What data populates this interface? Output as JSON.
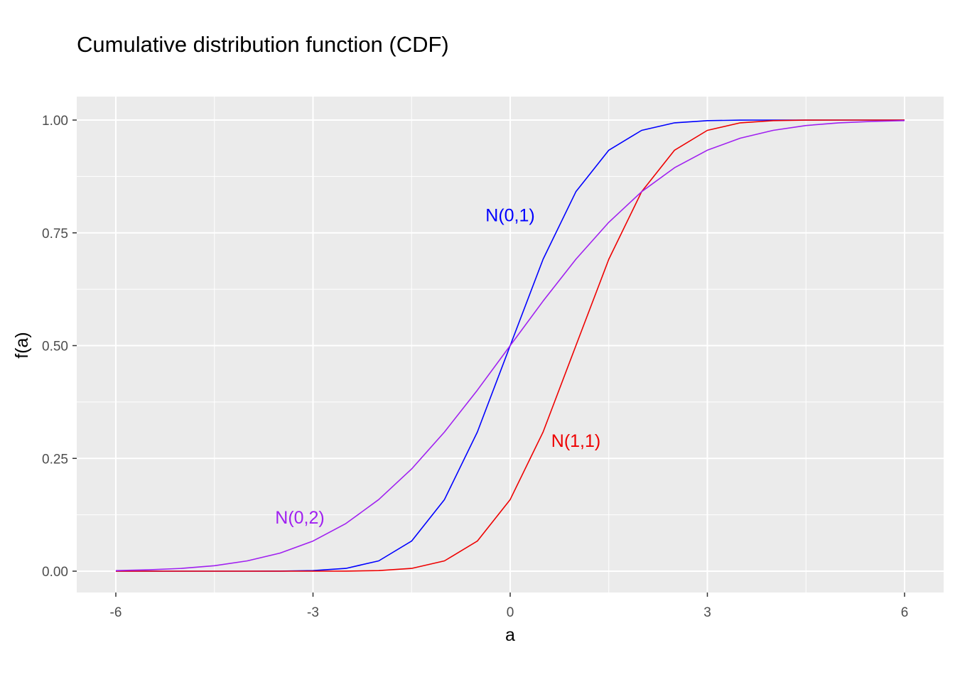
{
  "chart_data": {
    "type": "line",
    "title": "Cumulative distribution function (CDF)",
    "xlabel": "a",
    "ylabel": "f(a)",
    "xlim": [
      -6,
      6
    ],
    "ylim": [
      0,
      1
    ],
    "x_ticks": [
      -6,
      -3,
      0,
      3,
      6
    ],
    "x_tick_labels": [
      "-6",
      "-3",
      "0",
      "3",
      "6"
    ],
    "y_ticks": [
      0,
      0.25,
      0.5,
      0.75,
      1
    ],
    "y_tick_labels": [
      "0.00",
      "0.25",
      "0.50",
      "0.75",
      "1.00"
    ],
    "grid": true,
    "background": "#ebebeb",
    "x": [
      -6.0,
      -5.5,
      -5.0,
      -4.5,
      -4.0,
      -3.5,
      -3.0,
      -2.5,
      -2.0,
      -1.5,
      -1.0,
      -0.5,
      0.0,
      0.5,
      1.0,
      1.5,
      2.0,
      2.5,
      3.0,
      3.5,
      4.0,
      4.5,
      5.0,
      5.5,
      6.0
    ],
    "series": [
      {
        "name": "N(0,1)",
        "color": "#0000ff",
        "label_at": [
          0,
          0.79
        ],
        "values": [
          0.0,
          0.0,
          0.0,
          0.0,
          0.0,
          0.0002,
          0.0013,
          0.0062,
          0.0228,
          0.0668,
          0.1587,
          0.3085,
          0.5,
          0.6915,
          0.8413,
          0.9332,
          0.9772,
          0.9938,
          0.9987,
          0.9998,
          1.0,
          1.0,
          1.0,
          1.0,
          1.0
        ]
      },
      {
        "name": "N(1,1)",
        "color": "#ee0000",
        "label_at": [
          1.0,
          0.29
        ],
        "values": [
          0.0,
          0.0,
          0.0,
          0.0,
          0.0,
          0.0,
          0.0,
          0.0002,
          0.0013,
          0.0062,
          0.0228,
          0.0668,
          0.1587,
          0.3085,
          0.5,
          0.6915,
          0.8413,
          0.9332,
          0.9772,
          0.9938,
          0.9987,
          0.9998,
          1.0,
          1.0,
          1.0
        ]
      },
      {
        "name": "N(0,2)",
        "color": "#a020f0",
        "label_at": [
          -3.2,
          0.12
        ],
        "values": [
          0.0013,
          0.003,
          0.0062,
          0.0122,
          0.0228,
          0.0401,
          0.0668,
          0.1056,
          0.1587,
          0.2266,
          0.3085,
          0.4013,
          0.5,
          0.5987,
          0.6915,
          0.7734,
          0.8413,
          0.8944,
          0.9332,
          0.9599,
          0.9772,
          0.9878,
          0.9938,
          0.997,
          0.9987
        ]
      }
    ]
  }
}
